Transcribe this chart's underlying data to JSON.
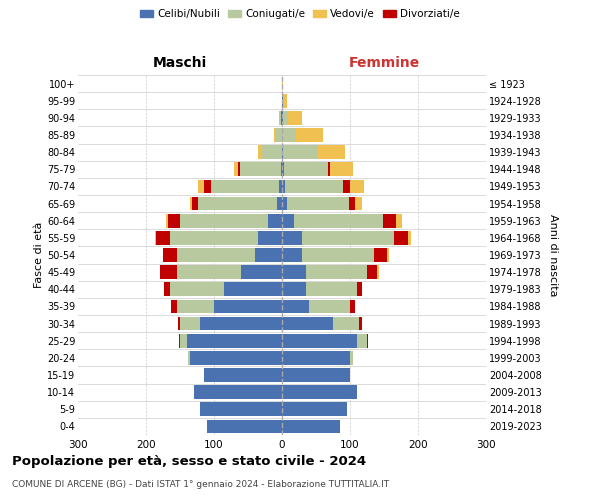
{
  "age_groups": [
    "0-4",
    "5-9",
    "10-14",
    "15-19",
    "20-24",
    "25-29",
    "30-34",
    "35-39",
    "40-44",
    "45-49",
    "50-54",
    "55-59",
    "60-64",
    "65-69",
    "70-74",
    "75-79",
    "80-84",
    "85-89",
    "90-94",
    "95-99",
    "100+"
  ],
  "birth_years": [
    "2019-2023",
    "2014-2018",
    "2009-2013",
    "2004-2008",
    "1999-2003",
    "1994-1998",
    "1989-1993",
    "1984-1988",
    "1979-1983",
    "1974-1978",
    "1969-1973",
    "1964-1968",
    "1959-1963",
    "1954-1958",
    "1949-1953",
    "1944-1948",
    "1939-1943",
    "1934-1938",
    "1929-1933",
    "1924-1928",
    "≤ 1923"
  ],
  "males": {
    "celibe": [
      110,
      120,
      130,
      115,
      135,
      140,
      120,
      100,
      85,
      60,
      40,
      35,
      20,
      8,
      5,
      2,
      0,
      0,
      1,
      0,
      0
    ],
    "coniugato": [
      0,
      0,
      0,
      0,
      3,
      10,
      30,
      55,
      80,
      95,
      115,
      130,
      130,
      115,
      100,
      60,
      30,
      10,
      4,
      0,
      0
    ],
    "vedovo": [
      0,
      0,
      0,
      0,
      0,
      0,
      0,
      0,
      0,
      0,
      0,
      2,
      2,
      3,
      8,
      5,
      5,
      2,
      0,
      0,
      0
    ],
    "divorziato": [
      0,
      0,
      0,
      0,
      0,
      2,
      3,
      8,
      8,
      25,
      20,
      20,
      18,
      10,
      10,
      3,
      0,
      0,
      0,
      0,
      0
    ]
  },
  "females": {
    "nubile": [
      85,
      95,
      110,
      100,
      100,
      110,
      75,
      40,
      35,
      35,
      30,
      30,
      18,
      8,
      5,
      3,
      2,
      0,
      1,
      1,
      0
    ],
    "coniugata": [
      0,
      0,
      0,
      0,
      5,
      15,
      38,
      60,
      75,
      90,
      105,
      135,
      130,
      90,
      85,
      65,
      50,
      20,
      8,
      2,
      0
    ],
    "vedova": [
      0,
      0,
      0,
      0,
      0,
      0,
      0,
      0,
      0,
      2,
      2,
      5,
      8,
      10,
      20,
      35,
      40,
      40,
      20,
      5,
      1
    ],
    "divorziata": [
      0,
      0,
      0,
      0,
      0,
      2,
      5,
      8,
      8,
      15,
      20,
      20,
      20,
      10,
      10,
      2,
      0,
      0,
      0,
      0,
      0
    ]
  },
  "colors": {
    "celibe": "#4a72b0",
    "coniugato": "#b8c9a0",
    "vedovo": "#f0c050",
    "divorziato": "#c00000"
  },
  "legend_labels": [
    "Celibi/Nubili",
    "Coniugati/e",
    "Vedovi/e",
    "Divorziati/e"
  ],
  "title": "Popolazione per età, sesso e stato civile - 2024",
  "subtitle": "COMUNE DI ARCENE (BG) - Dati ISTAT 1° gennaio 2024 - Elaborazione TUTTITALIA.IT",
  "xlabel_left": "Maschi",
  "xlabel_right": "Femmine",
  "ylabel_left": "Fasce di età",
  "ylabel_right": "Anni di nascita",
  "xlim": 300,
  "bg_color": "#ffffff",
  "grid_color": "#cccccc"
}
